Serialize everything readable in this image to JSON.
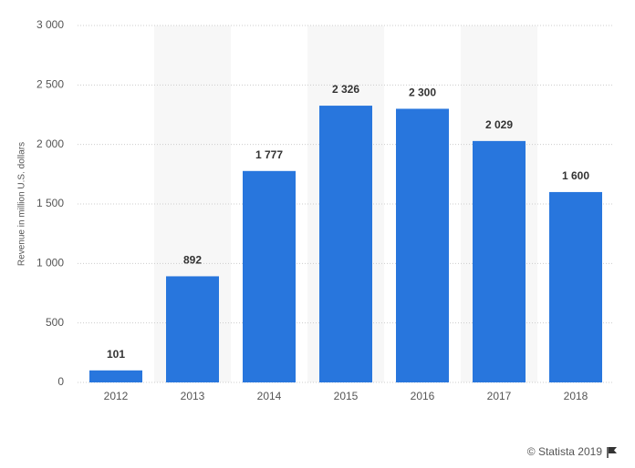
{
  "chart_data": {
    "type": "bar",
    "y_label": "Revenue in million U.S. dollars",
    "categories": [
      "2012",
      "2013",
      "2014",
      "2015",
      "2016",
      "2017",
      "2018"
    ],
    "values": [
      101,
      892,
      1777,
      2326,
      2300,
      2029,
      1600
    ],
    "value_labels": [
      "101",
      "892",
      "1 777",
      "2 326",
      "2 300",
      "2 029",
      "1 600"
    ],
    "color": "#2876dd",
    "ylim": [
      0,
      3000
    ],
    "yticks": [
      0,
      500,
      {
        "value": 1000,
        "label": "1 000"
      },
      {
        "value": 1500,
        "label": "1 500"
      },
      {
        "value": 2000,
        "label": "2 000"
      },
      {
        "value": 2500,
        "label": "2 500"
      },
      {
        "value": 3000,
        "label": "3 000"
      }
    ],
    "grid": true,
    "credit": "© Statista 2019"
  }
}
